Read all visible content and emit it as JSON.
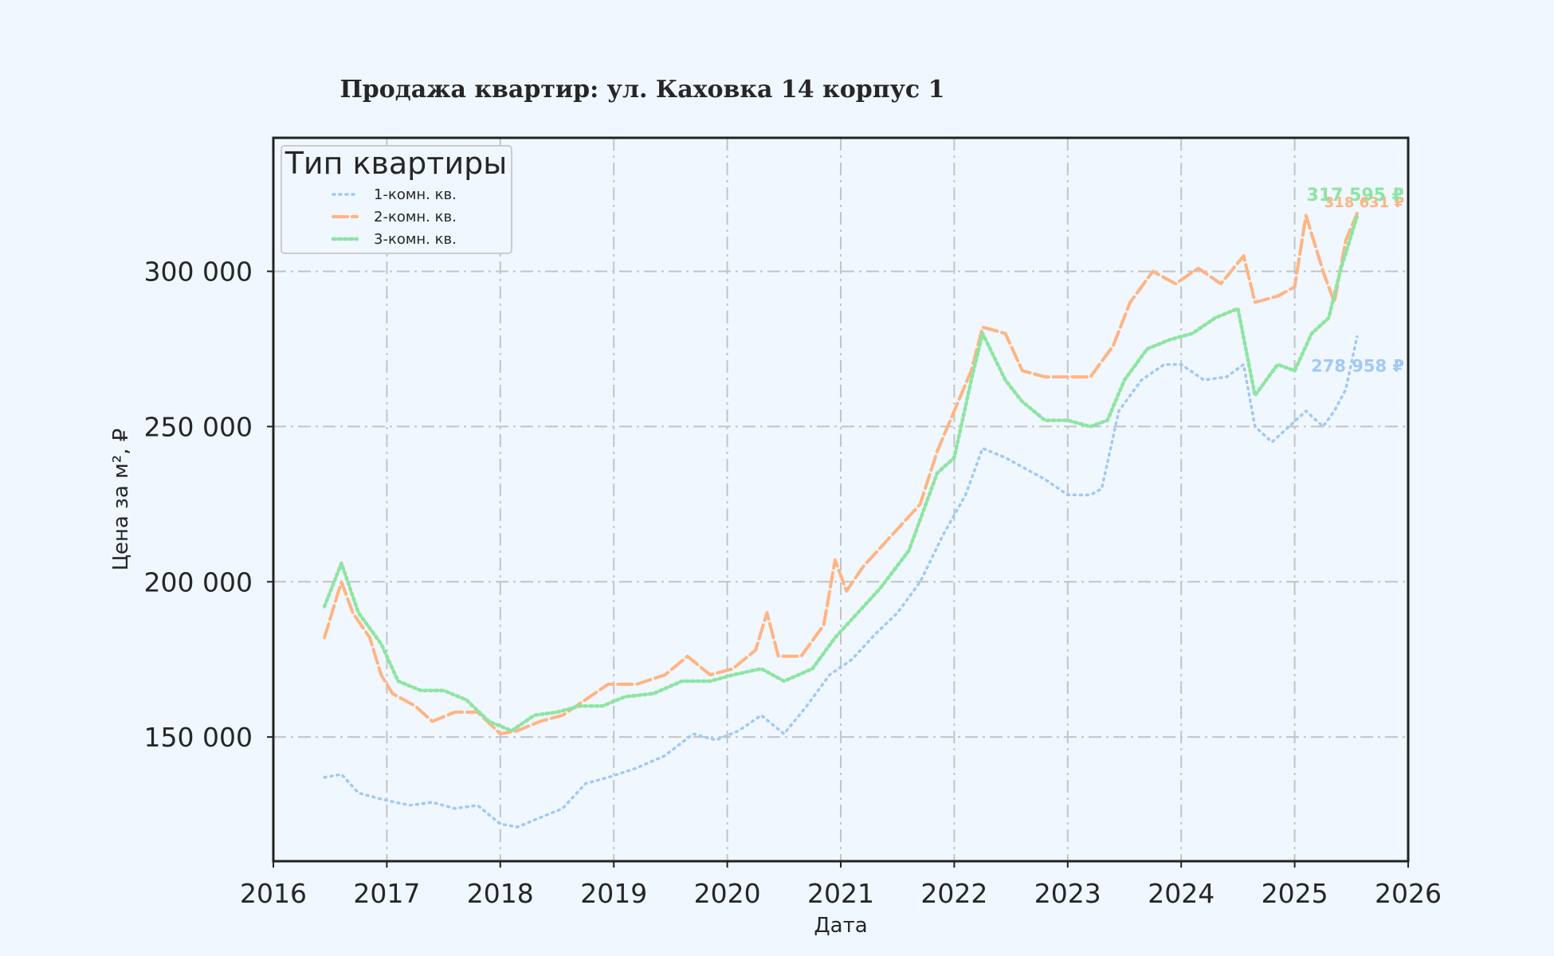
{
  "colors": {
    "background": "#f0f7ff",
    "plot_background": "#f0f7ff",
    "frame": "#222222",
    "grid": "#c4c4c4"
  },
  "chart_data": {
    "type": "line",
    "title": "Продажа квартир: ул. Каховка 14 корпус 1",
    "xlabel": "Дата",
    "ylabel": "Цена за м², ₽",
    "xlim": [
      2016.0,
      2026.0
    ],
    "ylim": [
      110000,
      343000
    ],
    "x_ticks": [
      "2016",
      "2017",
      "2018",
      "2019",
      "2020",
      "2021",
      "2022",
      "2023",
      "2024",
      "2025",
      "2026"
    ],
    "y_ticks": [
      150000,
      200000,
      250000,
      300000
    ],
    "y_tick_labels": [
      "150 000",
      "200 000",
      "250 000",
      "300 000"
    ],
    "grid": true,
    "legend": {
      "title": "Тип квартиры",
      "position": "top-left"
    },
    "series": [
      {
        "name": "1-комн. кв.",
        "color": "#a1c9f4",
        "dash": "dotted",
        "end_label": "278 958 ₽",
        "points": [
          [
            2016.45,
            137000
          ],
          [
            2016.6,
            138000
          ],
          [
            2016.75,
            132000
          ],
          [
            2016.95,
            130000
          ],
          [
            2017.2,
            128000
          ],
          [
            2017.4,
            129000
          ],
          [
            2017.6,
            127000
          ],
          [
            2017.8,
            128000
          ],
          [
            2018.0,
            122000
          ],
          [
            2018.15,
            121000
          ],
          [
            2018.35,
            124000
          ],
          [
            2018.55,
            127000
          ],
          [
            2018.75,
            135000
          ],
          [
            2018.95,
            137000
          ],
          [
            2019.2,
            140000
          ],
          [
            2019.45,
            144000
          ],
          [
            2019.7,
            151000
          ],
          [
            2019.9,
            149000
          ],
          [
            2020.1,
            152000
          ],
          [
            2020.3,
            157000
          ],
          [
            2020.5,
            151000
          ],
          [
            2020.7,
            160000
          ],
          [
            2020.9,
            170000
          ],
          [
            2021.1,
            175000
          ],
          [
            2021.3,
            183000
          ],
          [
            2021.5,
            190000
          ],
          [
            2021.7,
            200000
          ],
          [
            2021.9,
            215000
          ],
          [
            2022.1,
            228000
          ],
          [
            2022.25,
            243000
          ],
          [
            2022.45,
            240000
          ],
          [
            2022.6,
            237000
          ],
          [
            2022.8,
            233000
          ],
          [
            2023.0,
            228000
          ],
          [
            2023.2,
            228000
          ],
          [
            2023.3,
            230000
          ],
          [
            2023.45,
            255000
          ],
          [
            2023.65,
            265000
          ],
          [
            2023.85,
            270000
          ],
          [
            2024.0,
            270000
          ],
          [
            2024.2,
            265000
          ],
          [
            2024.4,
            266000
          ],
          [
            2024.55,
            270000
          ],
          [
            2024.65,
            250000
          ],
          [
            2024.8,
            245000
          ],
          [
            2024.95,
            250000
          ],
          [
            2025.1,
            255000
          ],
          [
            2025.25,
            250000
          ],
          [
            2025.35,
            255000
          ],
          [
            2025.45,
            262000
          ],
          [
            2025.55,
            278958
          ]
        ]
      },
      {
        "name": "2-комн. кв.",
        "color": "#ffb482",
        "dash": "dashed",
        "end_label": "318 631 ₽",
        "points": [
          [
            2016.45,
            182000
          ],
          [
            2016.6,
            200000
          ],
          [
            2016.7,
            190000
          ],
          [
            2016.85,
            182000
          ],
          [
            2016.95,
            170000
          ],
          [
            2017.05,
            164000
          ],
          [
            2017.25,
            160000
          ],
          [
            2017.4,
            155000
          ],
          [
            2017.6,
            158000
          ],
          [
            2017.8,
            158000
          ],
          [
            2018.0,
            151000
          ],
          [
            2018.15,
            152000
          ],
          [
            2018.35,
            155000
          ],
          [
            2018.55,
            157000
          ],
          [
            2018.75,
            162000
          ],
          [
            2018.95,
            167000
          ],
          [
            2019.2,
            167000
          ],
          [
            2019.45,
            170000
          ],
          [
            2019.65,
            176000
          ],
          [
            2019.85,
            170000
          ],
          [
            2020.05,
            172000
          ],
          [
            2020.25,
            178000
          ],
          [
            2020.35,
            190000
          ],
          [
            2020.45,
            176000
          ],
          [
            2020.65,
            176000
          ],
          [
            2020.85,
            186000
          ],
          [
            2020.95,
            207000
          ],
          [
            2021.05,
            197000
          ],
          [
            2021.2,
            205000
          ],
          [
            2021.45,
            215000
          ],
          [
            2021.7,
            225000
          ],
          [
            2021.85,
            242000
          ],
          [
            2022.0,
            255000
          ],
          [
            2022.15,
            268000
          ],
          [
            2022.25,
            282000
          ],
          [
            2022.45,
            280000
          ],
          [
            2022.6,
            268000
          ],
          [
            2022.8,
            266000
          ],
          [
            2023.0,
            266000
          ],
          [
            2023.2,
            266000
          ],
          [
            2023.4,
            276000
          ],
          [
            2023.55,
            290000
          ],
          [
            2023.75,
            300000
          ],
          [
            2023.95,
            296000
          ],
          [
            2024.15,
            301000
          ],
          [
            2024.35,
            296000
          ],
          [
            2024.55,
            305000
          ],
          [
            2024.65,
            290000
          ],
          [
            2024.85,
            292000
          ],
          [
            2025.0,
            295000
          ],
          [
            2025.1,
            318000
          ],
          [
            2025.25,
            300000
          ],
          [
            2025.35,
            290000
          ],
          [
            2025.45,
            310000
          ],
          [
            2025.55,
            318631
          ]
        ]
      },
      {
        "name": "3-комн. кв.",
        "color": "#8de5a1",
        "dash": "densely-dotted",
        "end_label": "317 595 ₽",
        "points": [
          [
            2016.45,
            192000
          ],
          [
            2016.6,
            206000
          ],
          [
            2016.75,
            190000
          ],
          [
            2016.95,
            180000
          ],
          [
            2017.1,
            168000
          ],
          [
            2017.3,
            165000
          ],
          [
            2017.5,
            165000
          ],
          [
            2017.7,
            162000
          ],
          [
            2017.9,
            155000
          ],
          [
            2018.1,
            152000
          ],
          [
            2018.3,
            157000
          ],
          [
            2018.5,
            158000
          ],
          [
            2018.7,
            160000
          ],
          [
            2018.9,
            160000
          ],
          [
            2019.1,
            163000
          ],
          [
            2019.35,
            164000
          ],
          [
            2019.6,
            168000
          ],
          [
            2019.85,
            168000
          ],
          [
            2020.05,
            170000
          ],
          [
            2020.3,
            172000
          ],
          [
            2020.5,
            168000
          ],
          [
            2020.75,
            172000
          ],
          [
            2020.95,
            182000
          ],
          [
            2021.15,
            190000
          ],
          [
            2021.35,
            198000
          ],
          [
            2021.6,
            210000
          ],
          [
            2021.85,
            235000
          ],
          [
            2022.0,
            240000
          ],
          [
            2022.15,
            265000
          ],
          [
            2022.25,
            280000
          ],
          [
            2022.45,
            265000
          ],
          [
            2022.6,
            258000
          ],
          [
            2022.8,
            252000
          ],
          [
            2023.0,
            252000
          ],
          [
            2023.2,
            250000
          ],
          [
            2023.35,
            252000
          ],
          [
            2023.5,
            265000
          ],
          [
            2023.7,
            275000
          ],
          [
            2023.9,
            278000
          ],
          [
            2024.1,
            280000
          ],
          [
            2024.3,
            285000
          ],
          [
            2024.5,
            288000
          ],
          [
            2024.65,
            260000
          ],
          [
            2024.85,
            270000
          ],
          [
            2025.0,
            268000
          ],
          [
            2025.15,
            280000
          ],
          [
            2025.3,
            285000
          ],
          [
            2025.4,
            300000
          ],
          [
            2025.55,
            317595
          ]
        ]
      }
    ]
  }
}
